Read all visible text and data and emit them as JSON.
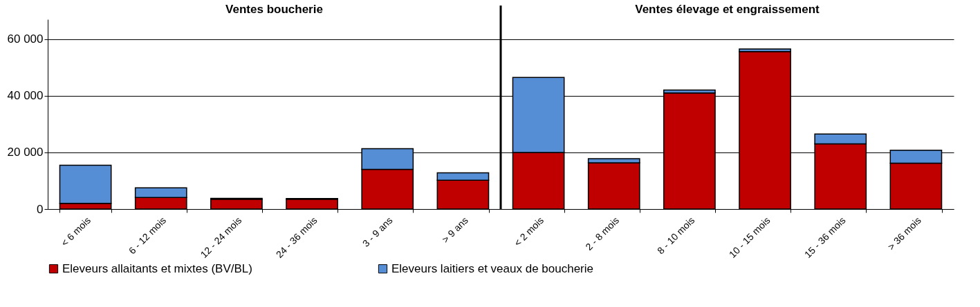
{
  "chart_data": {
    "type": "bar",
    "stacked": true,
    "categories": [
      "< 6 mois",
      "6 - 12 mois",
      "12 - 24 mois",
      "24 - 36 mois",
      "3 - 9 ans",
      "> 9 ans",
      "< 2 mois",
      "2 - 8 mois",
      "8 - 10 mois",
      "10 - 15 mois",
      "15 - 36 mois",
      "> 36 mois"
    ],
    "series": [
      {
        "name": "Eleveurs allaitants et mixtes (BV/BL)",
        "color": "#c00000",
        "values": [
          2000,
          4100,
          3500,
          3500,
          14000,
          10200,
          20000,
          16300,
          41000,
          55600,
          23000,
          16200
        ]
      },
      {
        "name": "Eleveurs laitiers et veaux de boucherie",
        "color": "#558ed5",
        "values": [
          13500,
          3400,
          300,
          200,
          7300,
          2600,
          26500,
          1500,
          1000,
          900,
          3500,
          4600
        ]
      }
    ],
    "ylim": [
      0,
      67000
    ],
    "yticks": [
      {
        "value": 0,
        "label": "0"
      },
      {
        "value": 20000,
        "label": "20 000"
      },
      {
        "value": 40000,
        "label": "40 000"
      },
      {
        "value": 60000,
        "label": "60 000"
      }
    ],
    "grid": "y",
    "legend": "bottom",
    "ref_lines": [
      {
        "axis": "x",
        "value": "< 2 mois",
        "color": "#000000"
      }
    ],
    "annotations": [
      "Ventes boucherie",
      "Ventes élevage et engraissement"
    ]
  }
}
